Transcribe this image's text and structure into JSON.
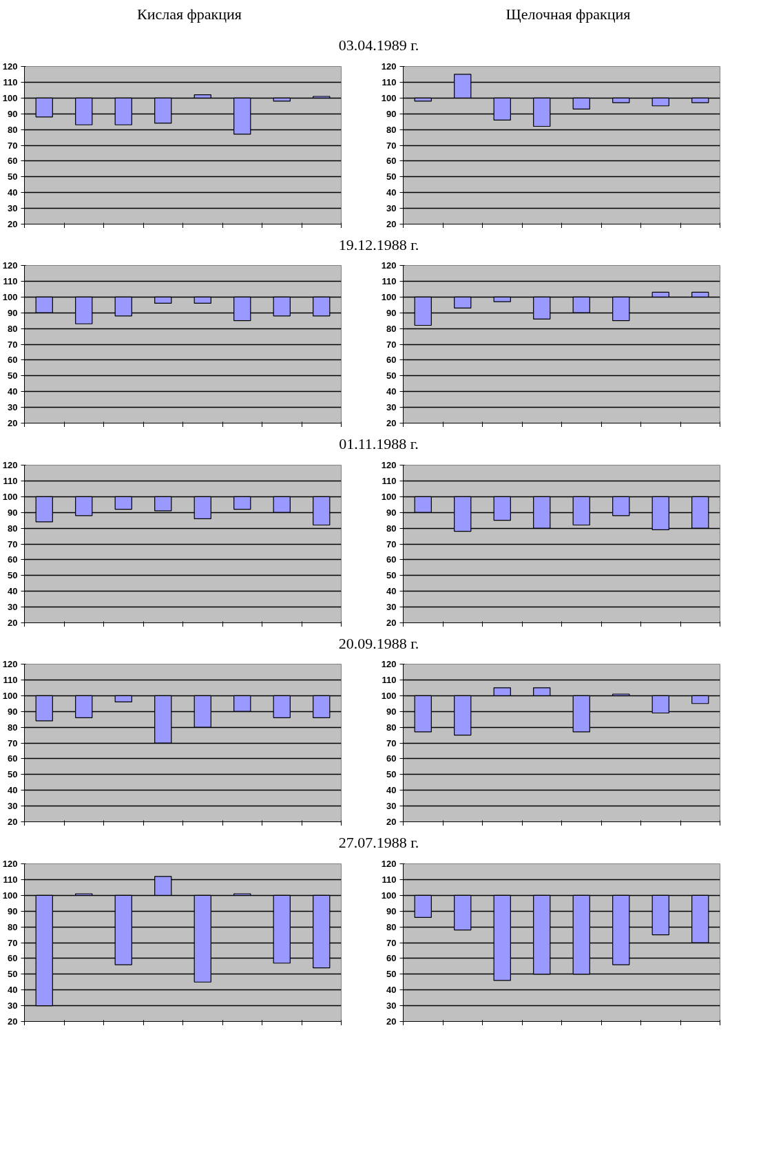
{
  "chart_data": [
    {
      "type": "bar",
      "subtitle": "Кислая фракция",
      "title": "03.04.1989  г.",
      "categories": [
        null,
        null,
        null,
        null,
        null,
        null,
        null,
        null
      ],
      "base": [
        100,
        100,
        100,
        100,
        100,
        100,
        100,
        100
      ],
      "values": [
        -12,
        -17,
        -17,
        -16,
        2,
        -23,
        -2,
        1
      ],
      "color": "#9999ff",
      "ylim": [
        20,
        120
      ],
      "yticks": [
        20,
        30,
        40,
        50,
        60,
        70,
        80,
        90,
        100,
        110,
        120
      ],
      "grid": "y",
      "tick_labels": "y"
    },
    {
      "type": "bar",
      "subtitle": "Щелочная фракция",
      "categories": [
        null,
        null,
        null,
        null,
        null,
        null,
        null,
        null
      ],
      "base": [
        100,
        100,
        100,
        100,
        100,
        100,
        100,
        100
      ],
      "values": [
        -2,
        15,
        -14,
        -18,
        -7,
        -3,
        -5,
        -3
      ],
      "color": "#9999ff",
      "ylim": [
        20,
        120
      ],
      "yticks": [
        20,
        30,
        40,
        50,
        60,
        70,
        80,
        90,
        100,
        110,
        120
      ],
      "grid": "y",
      "tick_labels": "y"
    },
    {
      "type": "bar",
      "title": "19.12.1988  г.",
      "categories": [
        null,
        null,
        null,
        null,
        null,
        null,
        null,
        null
      ],
      "base": [
        100,
        100,
        100,
        100,
        100,
        100,
        100,
        100
      ],
      "values": [
        -10,
        -17,
        -12,
        -4,
        -4,
        -15,
        -12,
        -12
      ],
      "color": "#9999ff",
      "ylim": [
        20,
        120
      ],
      "yticks": [
        20,
        30,
        40,
        50,
        60,
        70,
        80,
        90,
        100,
        110,
        120
      ],
      "grid": "y",
      "tick_labels": "y"
    },
    {
      "type": "bar",
      "categories": [
        null,
        null,
        null,
        null,
        null,
        null,
        null,
        null
      ],
      "base": [
        100,
        100,
        100,
        100,
        100,
        100,
        100,
        100
      ],
      "values": [
        -18,
        -7,
        -3,
        -14,
        -10,
        -15,
        3,
        3
      ],
      "color": "#9999ff",
      "ylim": [
        20,
        120
      ],
      "yticks": [
        20,
        30,
        40,
        50,
        60,
        70,
        80,
        90,
        100,
        110,
        120
      ],
      "grid": "y",
      "tick_labels": "y"
    },
    {
      "type": "bar",
      "title": "01.11.1988  г.",
      "categories": [
        null,
        null,
        null,
        null,
        null,
        null,
        null,
        null
      ],
      "base": [
        100,
        100,
        100,
        100,
        100,
        100,
        100,
        100
      ],
      "values": [
        -16,
        -12,
        -8,
        -9,
        -14,
        -8,
        -10,
        -18
      ],
      "color": "#9999ff",
      "ylim": [
        20,
        120
      ],
      "yticks": [
        20,
        30,
        40,
        50,
        60,
        70,
        80,
        90,
        100,
        110,
        120
      ],
      "grid": "y",
      "tick_labels": "y"
    },
    {
      "type": "bar",
      "categories": [
        null,
        null,
        null,
        null,
        null,
        null,
        null,
        null
      ],
      "base": [
        100,
        100,
        100,
        100,
        100,
        100,
        100,
        100
      ],
      "values": [
        -10,
        -22,
        -15,
        -20,
        -18,
        -12,
        -21,
        -20
      ],
      "color": "#9999ff",
      "ylim": [
        20,
        120
      ],
      "yticks": [
        20,
        30,
        40,
        50,
        60,
        70,
        80,
        90,
        100,
        110,
        120
      ],
      "grid": "y",
      "tick_labels": "y"
    },
    {
      "type": "bar",
      "title": "20.09.1988  г.",
      "categories": [
        null,
        null,
        null,
        null,
        null,
        null,
        null,
        null
      ],
      "base": [
        100,
        100,
        100,
        100,
        100,
        100,
        100,
        100
      ],
      "values": [
        -16,
        -14,
        -4,
        -30,
        -20,
        -10,
        -14,
        -14
      ],
      "color": "#9999ff",
      "ylim": [
        20,
        120
      ],
      "yticks": [
        20,
        30,
        40,
        50,
        60,
        70,
        80,
        90,
        100,
        110,
        120
      ],
      "grid": "y",
      "tick_labels": "y"
    },
    {
      "type": "bar",
      "categories": [
        null,
        null,
        null,
        null,
        null,
        null,
        null,
        null
      ],
      "base": [
        100,
        100,
        100,
        100,
        100,
        100,
        100,
        100
      ],
      "values": [
        -23,
        -25,
        5,
        5,
        -23,
        1,
        -11,
        -5
      ],
      "color": "#9999ff",
      "ylim": [
        20,
        120
      ],
      "yticks": [
        20,
        30,
        40,
        50,
        60,
        70,
        80,
        90,
        100,
        110,
        120
      ],
      "grid": "y",
      "tick_labels": "y"
    },
    {
      "type": "bar",
      "title": "27.07.1988  г.",
      "categories": [
        null,
        null,
        null,
        null,
        null,
        null,
        null,
        null
      ],
      "base": [
        100,
        100,
        100,
        100,
        100,
        100,
        100,
        100
      ],
      "values": [
        -70,
        1,
        -44,
        12,
        -55,
        1,
        -43,
        -46
      ],
      "color": "#9999ff",
      "ylim": [
        20,
        120
      ],
      "yticks": [
        20,
        30,
        40,
        50,
        60,
        70,
        80,
        90,
        100,
        110,
        120
      ],
      "grid": "y",
      "tick_labels": "y"
    },
    {
      "type": "bar",
      "categories": [
        null,
        null,
        null,
        null,
        null,
        null,
        null,
        null
      ],
      "base": [
        100,
        100,
        100,
        100,
        100,
        100,
        100,
        100
      ],
      "values": [
        -14,
        -22,
        -54,
        -50,
        -50,
        -44,
        -25,
        -30
      ],
      "color": "#9999ff",
      "ylim": [
        20,
        120
      ],
      "yticks": [
        20,
        30,
        40,
        50,
        60,
        70,
        80,
        90,
        100,
        110,
        120
      ],
      "grid": "y",
      "tick_labels": "y"
    }
  ]
}
